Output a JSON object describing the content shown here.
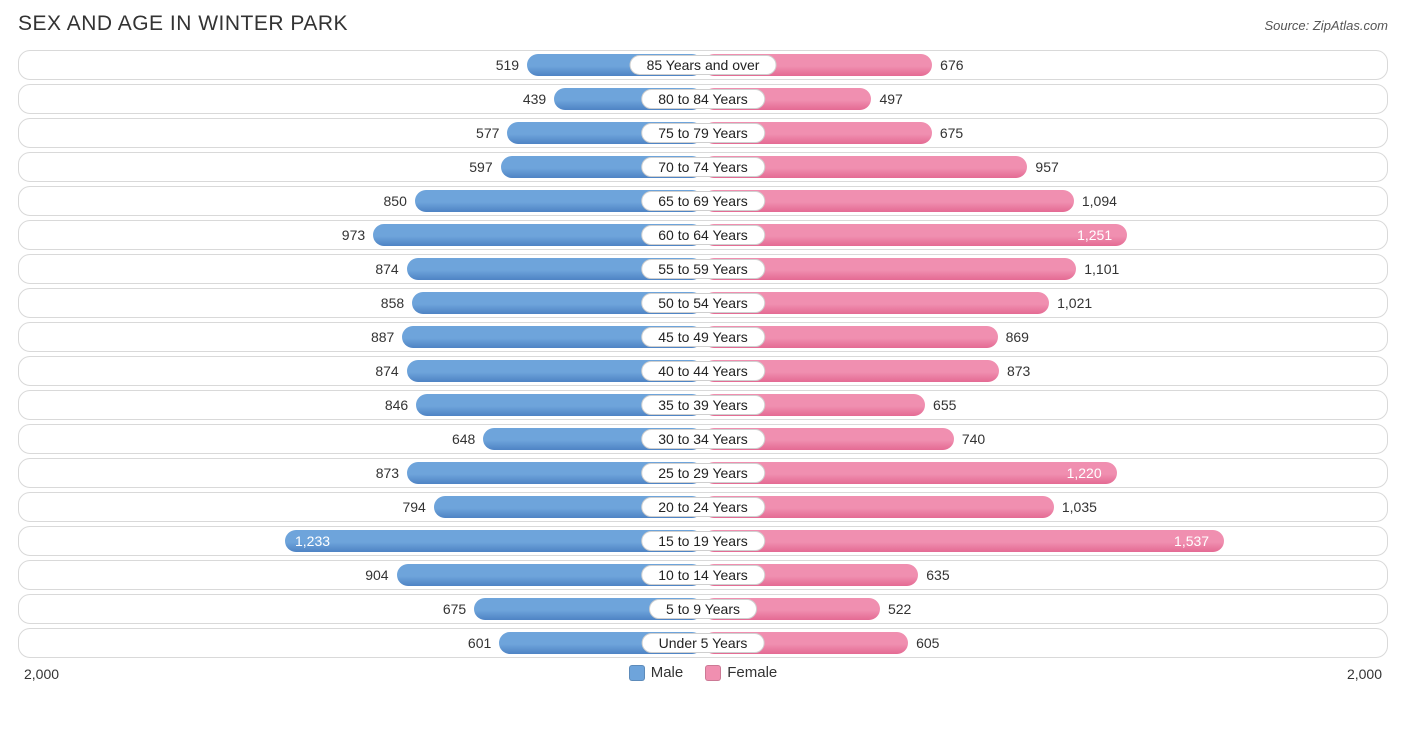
{
  "title": "SEX AND AGE IN WINTER PARK",
  "source": "Source: ZipAtlas.com",
  "chart": {
    "type": "population-pyramid-bar",
    "axis_max": 2000,
    "axis_label": "2,000",
    "male_color": "#6ea4db",
    "male_shadow": "#4e83c4",
    "female_color": "#f08fb0",
    "female_shadow": "#e46a93",
    "row_border_color": "#d9d9d9",
    "pill_border_color": "#cfcfcf",
    "background_color": "#ffffff",
    "text_color": "#333333",
    "title_fontsize": 21,
    "label_fontsize": 14,
    "legend": {
      "male": "Male",
      "female": "Female"
    },
    "rows": [
      {
        "label": "85 Years and over",
        "male": 519,
        "female": 676
      },
      {
        "label": "80 to 84 Years",
        "male": 439,
        "female": 497
      },
      {
        "label": "75 to 79 Years",
        "male": 577,
        "female": 675
      },
      {
        "label": "70 to 74 Years",
        "male": 597,
        "female": 957
      },
      {
        "label": "65 to 69 Years",
        "male": 850,
        "female": 1094
      },
      {
        "label": "60 to 64 Years",
        "male": 973,
        "female": 1251
      },
      {
        "label": "55 to 59 Years",
        "male": 874,
        "female": 1101
      },
      {
        "label": "50 to 54 Years",
        "male": 858,
        "female": 1021
      },
      {
        "label": "45 to 49 Years",
        "male": 887,
        "female": 869
      },
      {
        "label": "40 to 44 Years",
        "male": 874,
        "female": 873
      },
      {
        "label": "35 to 39 Years",
        "male": 846,
        "female": 655
      },
      {
        "label": "30 to 34 Years",
        "male": 648,
        "female": 740
      },
      {
        "label": "25 to 29 Years",
        "male": 873,
        "female": 1220
      },
      {
        "label": "20 to 24 Years",
        "male": 794,
        "female": 1035
      },
      {
        "label": "15 to 19 Years",
        "male": 1233,
        "female": 1537
      },
      {
        "label": "10 to 14 Years",
        "male": 904,
        "female": 635
      },
      {
        "label": "5 to 9 Years",
        "male": 675,
        "female": 522
      },
      {
        "label": "Under 5 Years",
        "male": 601,
        "female": 605
      }
    ],
    "inside_label_threshold": 1150
  }
}
